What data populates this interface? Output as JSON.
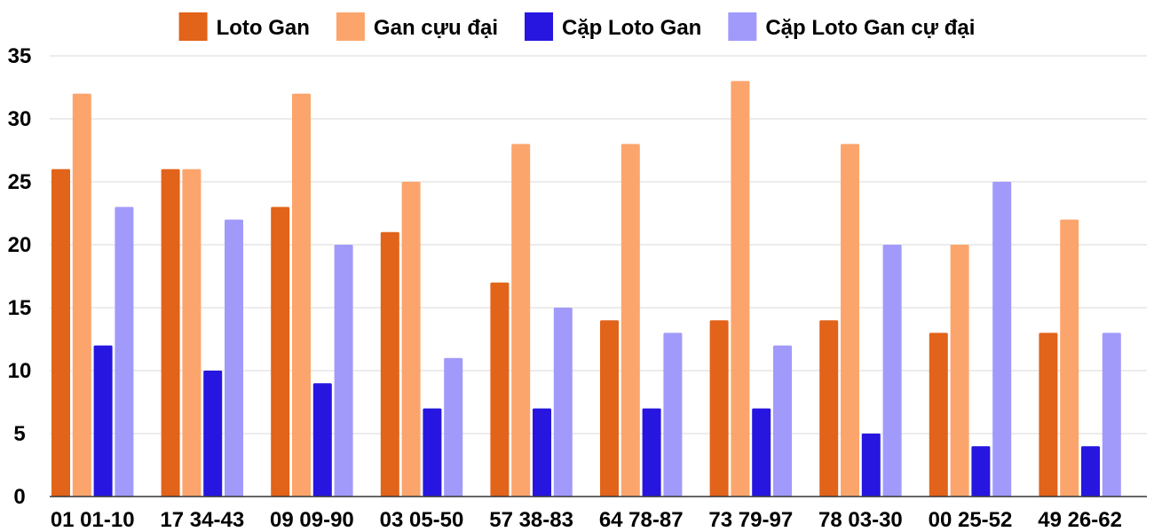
{
  "chart_data": {
    "type": "bar",
    "title": "",
    "xlabel": "",
    "ylabel": "",
    "ylim": [
      0,
      35
    ],
    "yticks": [
      0,
      5,
      10,
      15,
      20,
      25,
      30,
      35
    ],
    "grid": true,
    "legend_position": "top-center",
    "categories": [
      "01 01-10",
      "17 34-43",
      "09 09-90",
      "03 05-50",
      "57 38-83",
      "64 78-87",
      "73 79-97",
      "78 03-30",
      "00 25-52",
      "49 26-62"
    ],
    "series": [
      {
        "name": "Loto Gan",
        "color": "#e2631a",
        "values": [
          26,
          26,
          23,
          21,
          17,
          14,
          14,
          14,
          13,
          13
        ]
      },
      {
        "name": "Gan cựu đại",
        "color": "#fba56c",
        "values": [
          32,
          26,
          32,
          25,
          28,
          28,
          33,
          28,
          20,
          22
        ]
      },
      {
        "name": "Cặp Loto Gan",
        "color": "#2716e0",
        "values": [
          12,
          10,
          9,
          7,
          7,
          7,
          7,
          5,
          4,
          4
        ]
      },
      {
        "name": "Cặp Loto Gan cự đại",
        "color": "#a19afb",
        "values": [
          23,
          22,
          20,
          11,
          15,
          13,
          12,
          20,
          25,
          13
        ]
      }
    ]
  }
}
